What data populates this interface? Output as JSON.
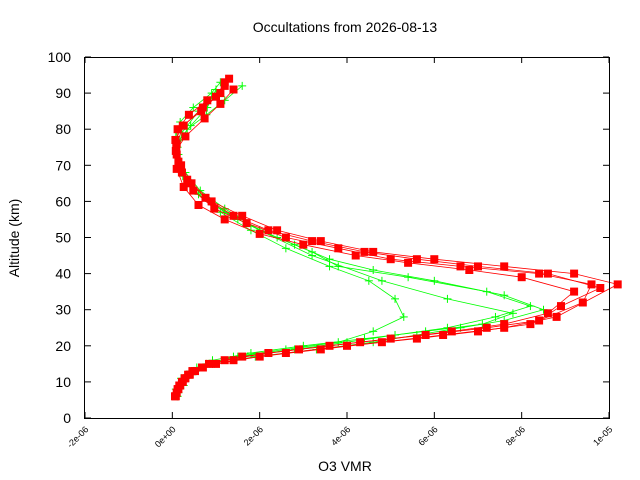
{
  "chart_data": {
    "type": "scatter",
    "title": "Occultations from 2026-08-13",
    "xlabel": "O3 VMR",
    "ylabel": "Altitude (km)",
    "xlim": [
      -2e-06,
      1e-05
    ],
    "ylim": [
      0,
      100
    ],
    "xticks": [
      "-2e-06",
      "0e+00",
      "2e-06",
      "4e-06",
      "6e-06",
      "8e-06",
      "1e-05",
      "1e-05"
    ],
    "yticks": [
      "0",
      "10",
      "20",
      "30",
      "40",
      "50",
      "60",
      "70",
      "80",
      "90",
      "100"
    ],
    "grid": false,
    "legend": "none",
    "series": [
      {
        "color": "#00ff00",
        "marker": "plus",
        "profiles": [
          {
            "x": [
              1.1e-07,
              1.6e-07,
              2.4e-07,
              3.4e-07,
              5.6e-07,
              9.2e-07,
              1.8e-06,
              3e-06,
              4.4e-06,
              5.8e-06,
              7.1e-06,
              7.8e-06,
              6.3e-06,
              4.8e-06,
              3.2e-06,
              2e-06,
              1.2e-06,
              6.4e-07,
              3e-07,
              1.4e-07,
              8e-08,
              1.8e-07,
              4.8e-07,
              9e-07,
              1.1e-06
            ],
            "y": [
              6,
              8,
              10,
              12,
              14,
              16,
              18,
              20,
              22,
              24,
              26,
              29,
              33,
              38,
              45,
              52,
              58,
              63,
              68,
              73,
              78,
              82,
              86,
              90,
              93
            ]
          },
          {
            "x": [
              1.4e-07,
              2e-07,
              3.2e-07,
              5e-07,
              8.6e-07,
              1.4e-06,
              2.6e-06,
              3.8e-06,
              4.6e-06,
              5.3e-06,
              5.1e-06,
              4.5e-06,
              3.6e-06,
              2.6e-06,
              1.8e-06,
              1.1e-06,
              6e-07,
              2.6e-07,
              1.2e-07,
              1.6e-07,
              4.2e-07,
              8e-07,
              1e-06
            ],
            "y": [
              7,
              9,
              11,
              13,
              15,
              17,
              19,
              21,
              24,
              28,
              33,
              38,
              42,
              47,
              52,
              57,
              62,
              67,
              72,
              77,
              81,
              86,
              91
            ]
          },
          {
            "x": [
              8e-08,
              2e-07,
              4e-07,
              7.8e-07,
              1.5e-06,
              2.8e-06,
              4e-06,
              5.1e-06,
              6.3e-06,
              7.4e-06,
              8.2e-06,
              7.2e-06,
              5.4e-06,
              3.8e-06,
              3.2e-06,
              2.4e-06,
              1.5e-06,
              8.4e-07,
              4e-07,
              1.6e-07,
              1.2e-07,
              3.4e-07,
              7.8e-07,
              1.2e-06,
              1.6e-06
            ],
            "y": [
              8,
              11,
              13,
              15,
              17,
              19,
              21,
              23,
              25,
              28,
              31,
              35,
              39,
              42,
              46,
              50,
              55,
              60,
              65,
              70,
              75,
              80,
              84,
              88,
              92
            ]
          },
          {
            "x": [
              1.2e-07,
              2.6e-07,
              4.6e-07,
              9.6e-07,
              1.9e-06,
              3.3e-06,
              4.6e-06,
              5.6e-06,
              6.6e-06,
              7.6e-06,
              8.5e-06,
              7.6e-06,
              6e-06,
              4.6e-06,
              3.6e-06,
              2.8e-06,
              2e-06,
              1.2e-06,
              6e-07,
              2.4e-07,
              1e-07,
              2.2e-07,
              6e-07,
              1e-06
            ],
            "y": [
              6,
              9,
              12,
              15,
              17,
              19,
              21,
              23,
              25,
              27,
              30,
              34,
              38,
              41,
              44,
              48,
              52,
              57,
              62,
              67,
              73,
              79,
              85,
              90
            ]
          }
        ]
      },
      {
        "color": "#ff0000",
        "marker": "square",
        "profiles": [
          {
            "x": [
              8e-08,
              1.4e-07,
              2.2e-07,
              3.6e-07,
              7e-07,
              1.4e-06,
              2.6e-06,
              4e-06,
              5.6e-06,
              7e-06,
              8.2e-06,
              9.4e-06,
              9.6e-06,
              8.4e-06,
              6.6e-06,
              5e-06,
              3.8e-06,
              2.6e-06,
              1.7e-06,
              9.6e-07,
              4.8e-07,
              2.2e-07,
              1e-07,
              7e-08,
              2.4e-07,
              6.6e-07,
              1e-06,
              1.2e-06
            ],
            "y": [
              6,
              8,
              10,
              12,
              14,
              16,
              18,
              20,
              22,
              24,
              26,
              32,
              37,
              40,
              42,
              44,
              47,
              50,
              54,
              58,
              63,
              68,
              73,
              77,
              81,
              85,
              89,
              93
            ]
          },
          {
            "x": [
              1e-07,
              1.8e-07,
              3e-07,
              5.2e-07,
              1e-06,
              2e-06,
              3.4e-06,
              4.8e-06,
              6.2e-06,
              7.6e-06,
              8.8e-06,
              1.02e-05,
              9.2e-06,
              7.6e-06,
              6e-06,
              4.6e-06,
              3.4e-06,
              2.4e-06,
              1.6e-06,
              9e-07,
              4.4e-07,
              2e-07,
              9e-08,
              1.2e-07,
              3.8e-07,
              8e-07,
              1.2e-06
            ],
            "y": [
              7,
              9,
              11,
              13,
              15,
              17,
              19,
              21,
              23,
              25,
              28,
              37,
              40,
              42,
              44,
              46,
              49,
              52,
              56,
              60,
              65,
              70,
              75,
              80,
              84,
              88,
              92
            ]
          },
          {
            "x": [
              1.2e-07,
              2.4e-07,
              4e-07,
              6.8e-07,
              1.2e-06,
              2.2e-06,
              3.6e-06,
              5e-06,
              6.4e-06,
              7.6e-06,
              8.6e-06,
              9.2e-06,
              8e-06,
              6.8e-06,
              5.4e-06,
              4.2e-06,
              3e-06,
              2e-06,
              1.2e-06,
              6e-07,
              2.6e-07,
              1e-07,
              8e-08,
              3e-07,
              7.4e-07,
              1.1e-06,
              1.4e-06
            ],
            "y": [
              8,
              10,
              12,
              14,
              16,
              18,
              20,
              22,
              24,
              26,
              29,
              35,
              39,
              41,
              43,
              45,
              48,
              51,
              55,
              59,
              64,
              69,
              74,
              78,
              83,
              87,
              91
            ]
          },
          {
            "x": [
              6e-08,
              1.6e-07,
              2.8e-07,
              4.6e-07,
              8.4e-07,
              1.6e-06,
              2.9e-06,
              4.3e-06,
              5.8e-06,
              7.2e-06,
              8.4e-06,
              8.9e-06,
              9.8e-06,
              8.6e-06,
              7e-06,
              5.6e-06,
              4.4e-06,
              3.2e-06,
              2.2e-06,
              1.4e-06,
              7.6e-07,
              3.4e-07,
              1.4e-07,
              1e-07,
              2.6e-07,
              7e-07,
              1.1e-06,
              1.3e-06
            ],
            "y": [
              6,
              9,
              11,
              13,
              15,
              17,
              19,
              21,
              23,
              25,
              27,
              31,
              36,
              40,
              42,
              44,
              46,
              49,
              52,
              56,
              61,
              66,
              71,
              76,
              81,
              86,
              90,
              94
            ]
          }
        ]
      }
    ]
  }
}
